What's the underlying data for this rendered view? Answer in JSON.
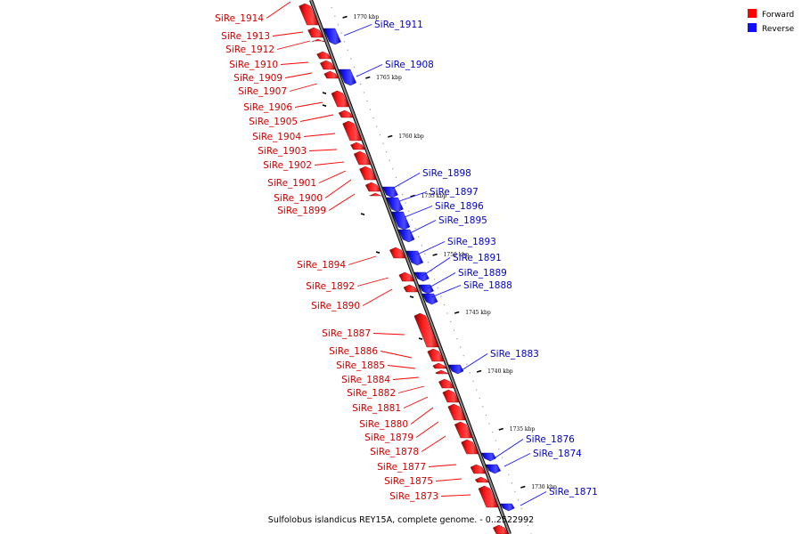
{
  "caption": "Sulfolobus islandicus REY15A, complete genome. - 0..2522992",
  "colors": {
    "forward": "#ff0000",
    "reverse": "#1010ff",
    "forward_label": "#cc0000",
    "reverse_label": "#0000cc",
    "axis": "#808080"
  },
  "legend": [
    {
      "label": "Forward",
      "color": "#ff0000"
    },
    {
      "label": "Reverse",
      "color": "#1010ff"
    }
  ],
  "ticks": [
    "1770 kbp",
    "1765 kbp",
    "1760 kbp",
    "1755 kbp",
    "1750 kbp",
    "1745 kbp",
    "1740 kbp",
    "1735 kbp",
    "1730 kbp"
  ],
  "forward_genes": [
    "SiRe_1914",
    "SiRe_1913",
    "SiRe_1912",
    "SiRe_1910",
    "SiRe_1909",
    "SiRe_1907",
    "SiRe_1906",
    "SiRe_1905",
    "SiRe_1904",
    "SiRe_1903",
    "SiRe_1902",
    "SiRe_1901",
    "SiRe_1900",
    "SiRe_1899",
    "SiRe_1894",
    "SiRe_1892",
    "SiRe_1890",
    "SiRe_1887",
    "SiRe_1886",
    "SiRe_1885",
    "SiRe_1884",
    "SiRe_1882",
    "SiRe_1881",
    "SiRe_1880",
    "SiRe_1879",
    "SiRe_1878",
    "SiRe_1877",
    "SiRe_1875",
    "SiRe_1873"
  ],
  "reverse_genes": [
    "SiRe_1911",
    "SiRe_1908",
    "SiRe_1898",
    "SiRe_1897",
    "SiRe_1896",
    "SiRe_1895",
    "SiRe_1893",
    "SiRe_1891",
    "SiRe_1889",
    "SiRe_1888",
    "SiRe_1883",
    "SiRe_1876",
    "SiRe_1874",
    "SiRe_1871"
  ]
}
